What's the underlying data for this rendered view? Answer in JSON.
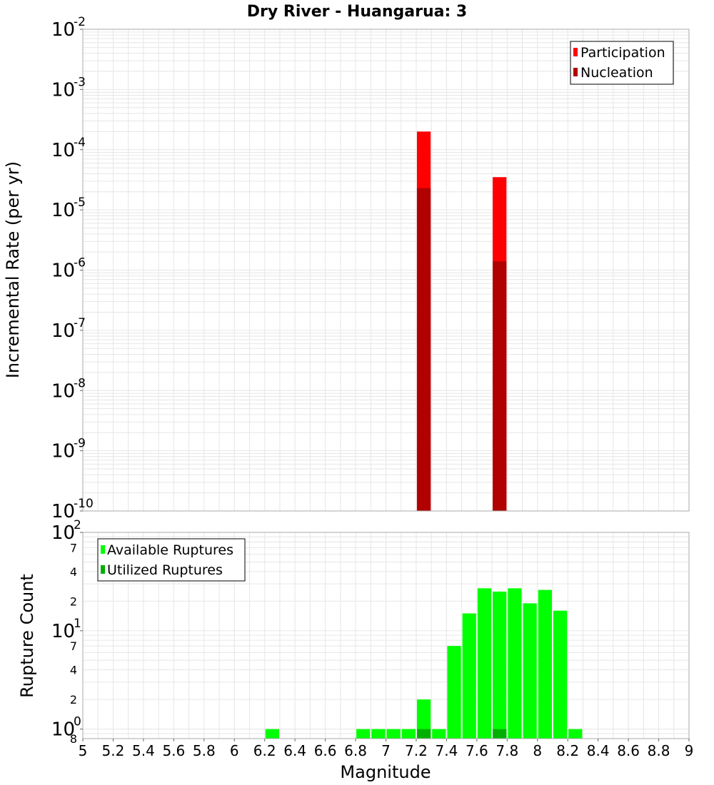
{
  "colors": {
    "participation": "#ff0000",
    "nucleation": "#b00000",
    "available": "#00ff00",
    "utilized": "#00b000",
    "grid": "#e6e6e6",
    "frame": "#aaaaaa"
  },
  "chart_data": [
    {
      "type": "bar",
      "title": "Dry River - Huangarua: 3",
      "xlabel": "",
      "ylabel": "Incremental Rate (per yr)",
      "yscale": "log",
      "xlim": [
        5,
        9
      ],
      "ylim": [
        1e-10,
        0.01
      ],
      "bin_width": 0.1,
      "y_ticks": [
        {
          "base": "10",
          "exp": "-10",
          "value": 1e-10
        },
        {
          "base": "10",
          "exp": "-9",
          "value": 1e-09
        },
        {
          "base": "10",
          "exp": "-8",
          "value": 1e-08
        },
        {
          "base": "10",
          "exp": "-7",
          "value": 1e-07
        },
        {
          "base": "10",
          "exp": "-6",
          "value": 1e-06
        },
        {
          "base": "10",
          "exp": "-5",
          "value": 1e-05
        },
        {
          "base": "10",
          "exp": "-4",
          "value": 0.0001
        },
        {
          "base": "10",
          "exp": "-3",
          "value": 0.001
        },
        {
          "base": "10",
          "exp": "-2",
          "value": 0.01
        }
      ],
      "legend": {
        "position": "top-right",
        "entries": [
          "Participation",
          "Nucleation"
        ]
      },
      "series": [
        {
          "name": "Participation",
          "x": [
            7.25,
            7.75
          ],
          "values": [
            0.0002,
            3.5e-05
          ]
        },
        {
          "name": "Nucleation",
          "x": [
            7.25,
            7.75
          ],
          "values": [
            2.3e-05,
            1.4e-06
          ]
        }
      ]
    },
    {
      "type": "bar",
      "title": "",
      "xlabel": "Magnitude",
      "ylabel": "Rupture Count",
      "yscale": "log",
      "xlim": [
        5,
        9
      ],
      "ylim": [
        0.8,
        100
      ],
      "bin_width": 0.1,
      "x_ticks": [
        "5",
        "5.2",
        "5.4",
        "5.6",
        "5.8",
        "6",
        "6.2",
        "6.4",
        "6.6",
        "6.8",
        "7",
        "7.2",
        "7.4",
        "7.6",
        "7.8",
        "8",
        "8.2",
        "8.4",
        "8.6",
        "8.8",
        "9"
      ],
      "y_major_ticks": [
        {
          "base": "10",
          "exp": "0",
          "value": 1
        },
        {
          "base": "10",
          "exp": "1",
          "value": 10
        },
        {
          "base": "10",
          "exp": "2",
          "value": 100
        }
      ],
      "y_minor_ticks": [
        {
          "label": "8",
          "value": 0.8
        },
        {
          "label": "2",
          "value": 2
        },
        {
          "label": "4",
          "value": 4
        },
        {
          "label": "7",
          "value": 7
        },
        {
          "label": "2",
          "value": 20
        },
        {
          "label": "4",
          "value": 40
        },
        {
          "label": "7",
          "value": 70
        }
      ],
      "legend": {
        "position": "top-left",
        "entries": [
          "Available Ruptures",
          "Utilized Ruptures"
        ]
      },
      "series": [
        {
          "name": "Available Ruptures",
          "x": [
            6.25,
            6.85,
            6.95,
            7.05,
            7.15,
            7.25,
            7.35,
            7.45,
            7.55,
            7.65,
            7.75,
            7.85,
            7.95,
            8.05,
            8.15,
            8.25
          ],
          "values": [
            1,
            1,
            1,
            1,
            1,
            2,
            1,
            7,
            15,
            27,
            25,
            27,
            19,
            26,
            16,
            1
          ]
        },
        {
          "name": "Utilized Ruptures",
          "x": [
            7.25,
            7.75
          ],
          "values": [
            1,
            1
          ]
        }
      ]
    }
  ]
}
